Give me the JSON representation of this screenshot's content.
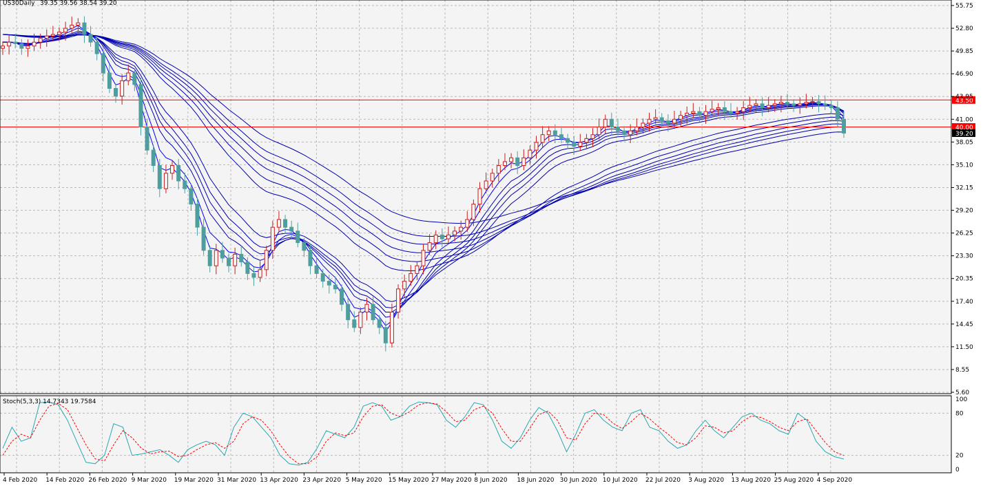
{
  "chart_data": {
    "type": "candlestick",
    "symbol_label": "US30Daily",
    "ohlc_label": "39.35 39.56 38.54 39.20",
    "price_ticks": [
      "55.75",
      "52.80",
      "49.85",
      "46.90",
      "43.95",
      "41.00",
      "38.05",
      "35.10",
      "32.15",
      "29.20",
      "26.25",
      "23.30",
      "20.35",
      "17.40",
      "14.45",
      "11.50",
      "8.55",
      "5.60"
    ],
    "date_ticks": [
      "4 Feb 2020",
      "14 Feb 2020",
      "26 Feb 2020",
      "9 Mar 2020",
      "19 Mar 2020",
      "31 Mar 2020",
      "13 Apr 2020",
      "23 Apr 2020",
      "5 May 2020",
      "15 May 2020",
      "27 May 2020",
      "8 Jun 2020",
      "18 Jun 2020",
      "30 Jun 2020",
      "10 Jul 2020",
      "22 Jul 2020",
      "3 Aug 2020",
      "13 Aug 2020",
      "25 Aug 2020",
      "4 Sep 2020"
    ],
    "ylim": [
      5.6,
      55.75
    ],
    "levels": [
      {
        "value": 43.5,
        "label": "43.50",
        "color": "#ff0000"
      },
      {
        "value": 40.0,
        "label": "40.00",
        "color": "#ff0000"
      }
    ],
    "last_price": {
      "value": 39.2,
      "label": "39.20",
      "color": "#000000"
    },
    "close_series": [
      50.5,
      51,
      50.8,
      50.2,
      50.5,
      51,
      51.5,
      51.8,
      52,
      52.3,
      52.8,
      53.2,
      53.5,
      52,
      51,
      49.5,
      47,
      45,
      44,
      46,
      47,
      45.5,
      40,
      37,
      35,
      32,
      34,
      35,
      33,
      32,
      30,
      27,
      24,
      22,
      24,
      23,
      22,
      23.5,
      22.5,
      21,
      20.5,
      21.5,
      24,
      27,
      28,
      27,
      26.5,
      25,
      24,
      22,
      21,
      20,
      19.5,
      19,
      17,
      15,
      14,
      16,
      17,
      15,
      14,
      12,
      16,
      19,
      20,
      21,
      22,
      24,
      25,
      26,
      25.5,
      26,
      26.5,
      27,
      28,
      30,
      32,
      33,
      34,
      35,
      35.5,
      36,
      35,
      36,
      37,
      38,
      39,
      39.5,
      39,
      38.5,
      38,
      37.5,
      38,
      38.5,
      39,
      40,
      41,
      40,
      39.5,
      39,
      39.5,
      40,
      40.5,
      41,
      41.2,
      40.8,
      40.5,
      41,
      41.5,
      41.8,
      42,
      41.5,
      42,
      42.3,
      42.5,
      42,
      41.8,
      42,
      42.5,
      42.8,
      43,
      42.5,
      42.8,
      43,
      43.2,
      43,
      42.8,
      43,
      43.2,
      43.3,
      43,
      42.8,
      42.5,
      41,
      39.2
    ],
    "stoch": {
      "label": "Stoch(5,3,3) 14.7343 19.7584",
      "ticks": [
        "100",
        "80",
        "20",
        "0"
      ],
      "ylim": [
        0,
        100
      ],
      "main": [
        30,
        60,
        40,
        45,
        95,
        96,
        92,
        70,
        40,
        10,
        8,
        20,
        65,
        60,
        20,
        22,
        25,
        28,
        20,
        10,
        28,
        35,
        40,
        35,
        20,
        60,
        80,
        75,
        60,
        45,
        20,
        8,
        6,
        10,
        30,
        55,
        50,
        45,
        60,
        90,
        95,
        90,
        70,
        75,
        90,
        96,
        95,
        92,
        70,
        60,
        75,
        95,
        92,
        70,
        40,
        30,
        45,
        70,
        88,
        80,
        55,
        25,
        50,
        80,
        85,
        70,
        60,
        55,
        80,
        85,
        60,
        55,
        40,
        30,
        35,
        55,
        70,
        55,
        45,
        60,
        75,
        80,
        70,
        65,
        55,
        50,
        80,
        70,
        40,
        25,
        18,
        14.7
      ],
      "signal": [
        20,
        40,
        50,
        45,
        70,
        90,
        94,
        85,
        60,
        35,
        15,
        12,
        35,
        55,
        45,
        30,
        22,
        25,
        26,
        18,
        20,
        28,
        35,
        38,
        30,
        40,
        65,
        75,
        70,
        55,
        35,
        18,
        8,
        8,
        18,
        40,
        52,
        48,
        52,
        75,
        90,
        92,
        80,
        75,
        82,
        92,
        95,
        93,
        82,
        68,
        70,
        85,
        90,
        80,
        58,
        40,
        40,
        58,
        78,
        83,
        70,
        45,
        42,
        65,
        80,
        78,
        66,
        58,
        68,
        80,
        72,
        60,
        50,
        38,
        35,
        45,
        62,
        60,
        52,
        55,
        68,
        76,
        74,
        68,
        60,
        55,
        68,
        72,
        55,
        38,
        25,
        19.76
      ]
    },
    "colors": {
      "bull_candle": "#c81e1e",
      "bear_candle": "#4f9e9e",
      "ribbon": "#0000b0",
      "ribbon_fast": "#0000ff",
      "stoch_main": "#2aa8b0",
      "stoch_signal": "#ff0000",
      "grid": "#b8b8b8",
      "background": "#f4f4f4"
    }
  }
}
